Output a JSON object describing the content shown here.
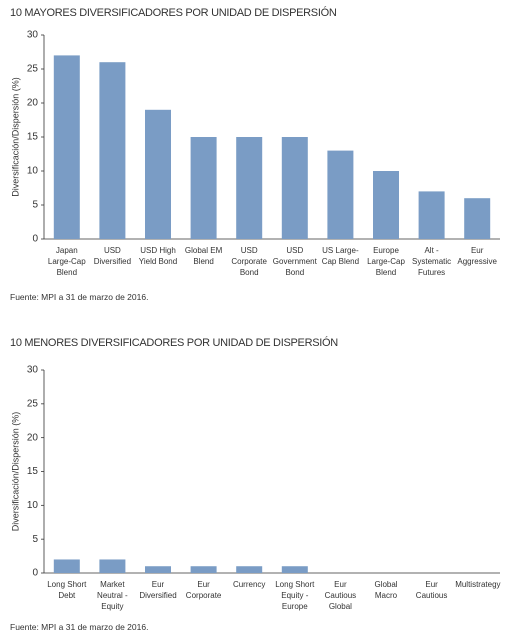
{
  "chart_data": [
    {
      "type": "bar",
      "title": "10 MAYORES DIVERSIFICADORES POR UNIDAD DE DISPERSIÓN",
      "y_label": "Diversificación/Dispersión (%)",
      "categories": [
        "Japan Large-Cap Blend",
        "USD Diversified",
        "USD High Yield Bond",
        "Global EM Blend",
        "USD Corporate Bond",
        "USD Government Bond",
        "US Large-Cap Blend",
        "Europe Large-Cap Blend",
        "Alt - Systematic Futures",
        "Eur Aggressive"
      ],
      "values": [
        27,
        26,
        19,
        15,
        15,
        15,
        13,
        10,
        7,
        6
      ],
      "color": "#7a9cc5",
      "ylim": [
        0,
        30
      ],
      "yticks": [
        0,
        5,
        10,
        15,
        20,
        25,
        30
      ],
      "grid": false,
      "source": "Fuente: MPI a 31 de marzo de 2016."
    },
    {
      "type": "bar",
      "title": "10 MENORES DIVERSIFICADORES POR UNIDAD DE DISPERSIÓN",
      "y_label": "Diversificación/Dispersión (%)",
      "categories": [
        "Long Short Debt",
        "Market Neutral - Equity",
        "Eur Diversified",
        "Eur Corporate",
        "Currency",
        "Long Short Equity - Europe",
        "Eur Cautious Global",
        "Global Macro",
        "Eur Cautious",
        "Multistrategy"
      ],
      "values": [
        2,
        2,
        1,
        1,
        1,
        1,
        0,
        0,
        0,
        0
      ],
      "color": "#7a9cc5",
      "ylim": [
        0,
        30
      ],
      "yticks": [
        0,
        5,
        10,
        15,
        20,
        25,
        30
      ],
      "grid": false,
      "source": "Fuente: MPI a 31 de marzo de 2016."
    }
  ]
}
